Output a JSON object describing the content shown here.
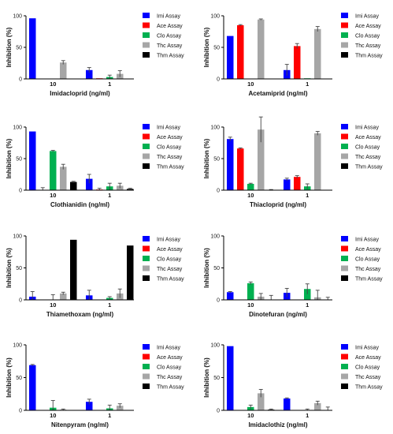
{
  "chart_data": [
    {
      "type": "bar",
      "ylabel": "Inhibition (%)",
      "xlabel": "Imidacloprid (ng/ml)",
      "categories": [
        "10",
        "1"
      ],
      "ylim": [
        0,
        100
      ],
      "yticks": [
        0,
        50,
        100
      ],
      "series": [
        {
          "name": "Imi Assay",
          "color": "#0000ff",
          "values": [
            96,
            14
          ],
          "errors": [
            0,
            4
          ]
        },
        {
          "name": "Ace Assay",
          "color": "#ff0000",
          "values": [
            0,
            1
          ],
          "errors": [
            0,
            0
          ]
        },
        {
          "name": "Clo Assay",
          "color": "#00b050",
          "values": [
            0,
            3
          ],
          "errors": [
            0,
            3
          ]
        },
        {
          "name": "Thc Assay",
          "color": "#a6a6a6",
          "values": [
            26,
            8
          ],
          "errors": [
            3,
            5
          ]
        },
        {
          "name": "Thm Assay",
          "color": "#000000",
          "values": [
            0,
            0
          ],
          "errors": [
            0,
            0
          ]
        }
      ]
    },
    {
      "type": "bar",
      "ylabel": "Inhibition (%)",
      "xlabel": "Acetamiprid (ng/ml)",
      "categories": [
        "10",
        "1"
      ],
      "ylim": [
        0,
        100
      ],
      "yticks": [
        0,
        50,
        100
      ],
      "series": [
        {
          "name": "Imi Assay",
          "color": "#0000ff",
          "values": [
            68,
            14
          ],
          "errors": [
            0,
            9
          ]
        },
        {
          "name": "Ace Assay",
          "color": "#ff0000",
          "values": [
            85,
            52
          ],
          "errors": [
            1,
            4
          ]
        },
        {
          "name": "Clo Assay",
          "color": "#00b050",
          "values": [
            0,
            1
          ],
          "errors": [
            0,
            0
          ]
        },
        {
          "name": "Thc Assay",
          "color": "#a6a6a6",
          "values": [
            94,
            79
          ],
          "errors": [
            1,
            4
          ]
        },
        {
          "name": "Thm Assay",
          "color": "#000000",
          "values": [
            0,
            0
          ],
          "errors": [
            0,
            0
          ]
        }
      ]
    },
    {
      "type": "bar",
      "ylabel": "Inhibition (%)",
      "xlabel": "Clothianidin (ng/ml)",
      "categories": [
        "10",
        "1"
      ],
      "ylim": [
        0,
        100
      ],
      "yticks": [
        0,
        50,
        100
      ],
      "series": [
        {
          "name": "Imi Assay",
          "color": "#0000ff",
          "values": [
            93,
            18
          ],
          "errors": [
            0,
            7
          ]
        },
        {
          "name": "Ace Assay",
          "color": "#ff0000",
          "values": [
            0,
            1
          ],
          "errors": [
            4,
            2
          ]
        },
        {
          "name": "Clo Assay",
          "color": "#00b050",
          "values": [
            62,
            6
          ],
          "errors": [
            1,
            5
          ]
        },
        {
          "name": "Thc Assay",
          "color": "#a6a6a6",
          "values": [
            37,
            7
          ],
          "errors": [
            4,
            4
          ]
        },
        {
          "name": "Thm Assay",
          "color": "#000000",
          "values": [
            13,
            2
          ],
          "errors": [
            1,
            1
          ]
        }
      ]
    },
    {
      "type": "bar",
      "ylabel": "Inhibition (%)",
      "xlabel": "Thiacloprid (ng/ml)",
      "categories": [
        "10",
        "1"
      ],
      "ylim": [
        0,
        100
      ],
      "yticks": [
        0,
        50,
        100
      ],
      "series": [
        {
          "name": "Imi Assay",
          "color": "#0000ff",
          "values": [
            81,
            17
          ],
          "errors": [
            3,
            2
          ]
        },
        {
          "name": "Ace Assay",
          "color": "#ff0000",
          "values": [
            66,
            21
          ],
          "errors": [
            1,
            2
          ]
        },
        {
          "name": "Clo Assay",
          "color": "#00b050",
          "values": [
            10,
            6
          ],
          "errors": [
            1,
            4
          ]
        },
        {
          "name": "Thc Assay",
          "color": "#a6a6a6",
          "values": [
            96,
            90
          ],
          "errors": [
            20,
            3
          ]
        },
        {
          "name": "Thm Assay",
          "color": "#000000",
          "values": [
            0,
            0
          ],
          "errors": [
            1,
            0
          ]
        }
      ]
    },
    {
      "type": "bar",
      "ylabel": "Inhibition (%)",
      "xlabel": "Thiamethoxam (ng/ml)",
      "categories": [
        "10",
        "1"
      ],
      "ylim": [
        0,
        100
      ],
      "yticks": [
        0,
        50,
        100
      ],
      "series": [
        {
          "name": "Imi Assay",
          "color": "#0000ff",
          "values": [
            5,
            7
          ],
          "errors": [
            8,
            8
          ]
        },
        {
          "name": "Ace Assay",
          "color": "#ff0000",
          "values": [
            0,
            0
          ],
          "errors": [
            0,
            0
          ]
        },
        {
          "name": "Clo Assay",
          "color": "#00b050",
          "values": [
            0,
            3
          ],
          "errors": [
            8,
            2
          ]
        },
        {
          "name": "Thc Assay",
          "color": "#a6a6a6",
          "values": [
            10,
            10
          ],
          "errors": [
            2,
            7
          ]
        },
        {
          "name": "Thm Assay",
          "color": "#000000",
          "values": [
            94,
            85
          ],
          "errors": [
            0,
            0
          ]
        }
      ]
    },
    {
      "type": "bar",
      "ylabel": "Inhibition (%)",
      "xlabel": "Dinotefuran (ng/ml)",
      "categories": [
        "10",
        "1"
      ],
      "ylim": [
        0,
        100
      ],
      "yticks": [
        0,
        50,
        100
      ],
      "series": [
        {
          "name": "Imi Assay",
          "color": "#0000ff",
          "values": [
            12,
            11
          ],
          "errors": [
            1,
            7
          ]
        },
        {
          "name": "Ace Assay",
          "color": "#ff0000",
          "values": [
            0,
            0
          ],
          "errors": [
            0,
            0
          ]
        },
        {
          "name": "Clo Assay",
          "color": "#00b050",
          "values": [
            26,
            17
          ],
          "errors": [
            2,
            8
          ]
        },
        {
          "name": "Thc Assay",
          "color": "#a6a6a6",
          "values": [
            5,
            4
          ],
          "errors": [
            5,
            11
          ]
        },
        {
          "name": "Thm Assay",
          "color": "#000000",
          "values": [
            0,
            0
          ],
          "errors": [
            7,
            4
          ]
        }
      ]
    },
    {
      "type": "bar",
      "ylabel": "Inhibition (%)",
      "xlabel": "Nitenpyram (ng/ml)",
      "categories": [
        "10",
        "1"
      ],
      "ylim": [
        0,
        100
      ],
      "yticks": [
        0,
        50,
        100
      ],
      "series": [
        {
          "name": "Imi Assay",
          "color": "#0000ff",
          "values": [
            69,
            13
          ],
          "errors": [
            1,
            4
          ]
        },
        {
          "name": "Ace Assay",
          "color": "#ff0000",
          "values": [
            0,
            0
          ],
          "errors": [
            0,
            0
          ]
        },
        {
          "name": "Clo Assay",
          "color": "#00b050",
          "values": [
            4,
            3
          ],
          "errors": [
            11,
            5
          ]
        },
        {
          "name": "Thc Assay",
          "color": "#a6a6a6",
          "values": [
            1,
            7
          ],
          "errors": [
            1,
            3
          ]
        },
        {
          "name": "Thm Assay",
          "color": "#000000",
          "values": [
            0,
            0
          ],
          "errors": [
            0,
            0
          ]
        }
      ]
    },
    {
      "type": "bar",
      "ylabel": "Inhibition (%)",
      "xlabel": "Imidaclothiz (ng/ml)",
      "categories": [
        "10",
        "1"
      ],
      "ylim": [
        0,
        100
      ],
      "yticks": [
        0,
        50,
        100
      ],
      "series": [
        {
          "name": "Imi Assay",
          "color": "#0000ff",
          "values": [
            98,
            18
          ],
          "errors": [
            0,
            1
          ]
        },
        {
          "name": "Ace Assay",
          "color": "#ff0000",
          "values": [
            0,
            0
          ],
          "errors": [
            0,
            0
          ]
        },
        {
          "name": "Clo Assay",
          "color": "#00b050",
          "values": [
            5,
            0
          ],
          "errors": [
            3,
            2
          ]
        },
        {
          "name": "Thc Assay",
          "color": "#a6a6a6",
          "values": [
            26,
            11
          ],
          "errors": [
            6,
            3
          ]
        },
        {
          "name": "Thm Assay",
          "color": "#000000",
          "values": [
            1,
            0
          ],
          "errors": [
            1,
            5
          ]
        }
      ]
    }
  ]
}
